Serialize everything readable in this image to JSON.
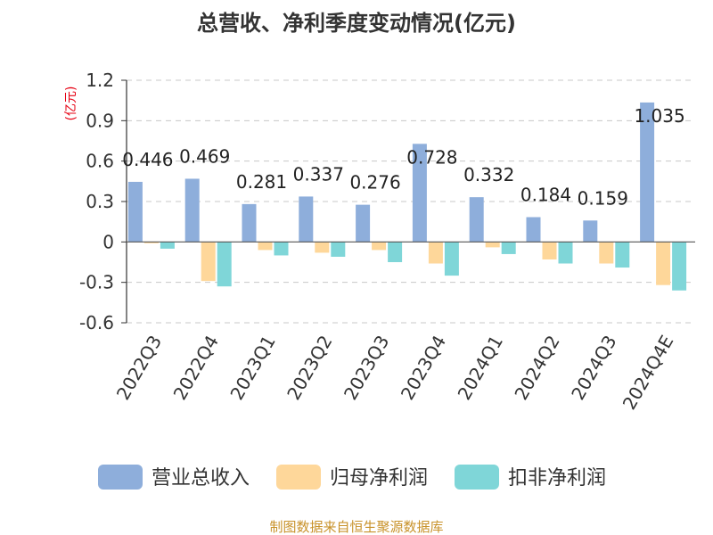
{
  "chart_data": {
    "type": "bar",
    "title": "总营收、净利季度变动情况(亿元)",
    "unit_label": "(亿元)",
    "categories": [
      "2022Q3",
      "2022Q4",
      "2023Q1",
      "2023Q2",
      "2023Q3",
      "2023Q4",
      "2024Q1",
      "2024Q2",
      "2024Q3",
      "2024Q4E"
    ],
    "series": [
      {
        "name": "营业总收入",
        "color": "#8eaedb",
        "values": [
          0.446,
          0.469,
          0.281,
          0.337,
          0.276,
          0.728,
          0.332,
          0.184,
          0.159,
          1.035
        ]
      },
      {
        "name": "归母净利润",
        "color": "#fed79a",
        "values": [
          -0.01,
          -0.29,
          -0.06,
          -0.08,
          -0.06,
          -0.16,
          -0.04,
          -0.13,
          -0.16,
          -0.32
        ]
      },
      {
        "name": "扣非净利润",
        "color": "#7fd6d8",
        "values": [
          -0.05,
          -0.33,
          -0.1,
          -0.11,
          -0.15,
          -0.25,
          -0.09,
          -0.16,
          -0.19,
          -0.36
        ]
      }
    ],
    "value_labels": [
      "0.446",
      "0.469",
      "0.281",
      "0.337",
      "0.276",
      "0.728",
      "0.332",
      "0.184",
      "0.159",
      "1.035"
    ],
    "yticks": [
      "1.2",
      "0.9",
      "0.6",
      "0.3",
      "0",
      "-0.3",
      "-0.6"
    ],
    "ylim": [
      -0.6,
      1.2
    ],
    "grid": true,
    "legend_position": "bottom"
  },
  "footer": {
    "source": "制图数据来自恒生聚源数据库"
  }
}
